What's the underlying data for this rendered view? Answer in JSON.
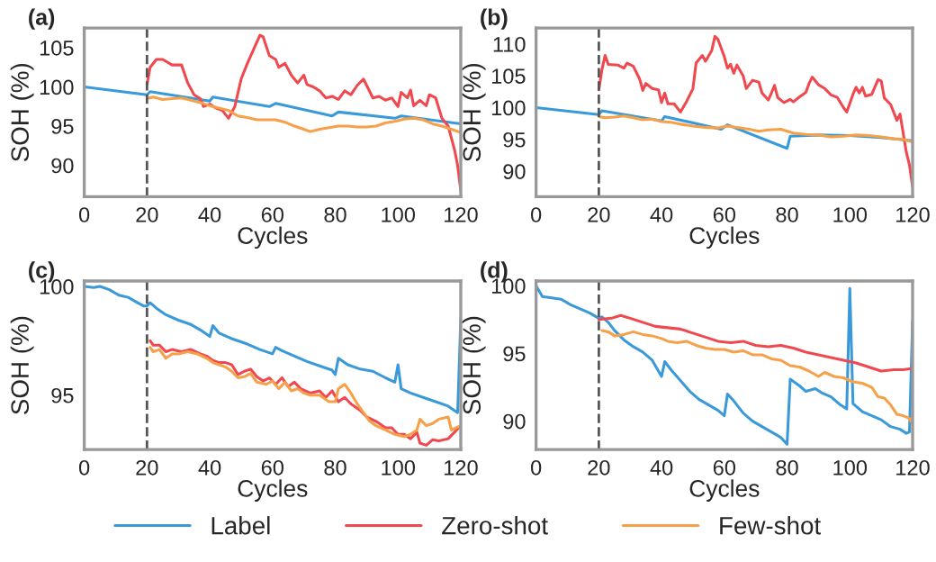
{
  "chart_data": [
    {
      "type": "line",
      "title": "(a)",
      "xlabel": "Cycles",
      "ylabel": "SOH (%)",
      "xlim": [
        0,
        120
      ],
      "xticks": [
        0,
        20,
        40,
        60,
        80,
        100,
        120
      ],
      "ylim": [
        86,
        107.5
      ],
      "yticks": [
        90,
        95,
        100,
        105
      ],
      "grid": false,
      "legend": "bottom",
      "ref_lines": [
        {
          "axis": "x",
          "value": 20,
          "color": "#555555",
          "line_style": "dashed"
        }
      ],
      "series": [
        {
          "name": "Label",
          "color": "#3a9ad9",
          "x": [
            0,
            20,
            21,
            40,
            41,
            59,
            61,
            79,
            81,
            99,
            101,
            120
          ],
          "values": [
            100,
            99,
            99.4,
            98.2,
            98.7,
            97.5,
            97.9,
            96.3,
            96.8,
            96,
            96.3,
            95.3
          ]
        },
        {
          "name": "Zero-shot",
          "color": "#f0484f",
          "x": [
            20,
            21,
            23,
            25,
            28,
            31,
            33,
            35,
            37,
            38,
            40,
            42,
            44,
            46,
            48,
            50,
            52,
            54,
            56,
            57,
            59,
            61,
            62,
            64,
            66,
            68,
            70,
            71,
            73,
            75,
            77,
            79,
            81,
            83,
            85,
            87,
            89,
            90,
            92,
            94,
            96,
            98,
            100,
            101,
            103,
            104,
            105,
            107,
            109,
            110,
            112,
            114,
            116,
            118,
            119,
            120
          ],
          "values": [
            100.3,
            102.5,
            103.5,
            103.5,
            102.8,
            102.8,
            100.5,
            99,
            98.5,
            97.5,
            97.8,
            97.3,
            97,
            96,
            97.5,
            101,
            103,
            104.8,
            106.6,
            106.4,
            104,
            103.5,
            102.5,
            103,
            101.5,
            100.5,
            101.5,
            100.3,
            100,
            99.5,
            98.6,
            98.8,
            98.4,
            99.5,
            99,
            100.2,
            101,
            100.2,
            98.6,
            98.8,
            98.3,
            98.6,
            97.5,
            99.3,
            98.6,
            99.6,
            97.6,
            98.3,
            97.6,
            99,
            98.6,
            96,
            95,
            92,
            90,
            86.8
          ]
        },
        {
          "name": "Few-shot",
          "color": "#f6a04a",
          "x": [
            20,
            22,
            25,
            28,
            31,
            34,
            37,
            40,
            43,
            46,
            49,
            52,
            55,
            58,
            61,
            64,
            67,
            70,
            72,
            75,
            78,
            81,
            84,
            87,
            90,
            93,
            96,
            99,
            102,
            105,
            108,
            111,
            114,
            117,
            120
          ],
          "values": [
            98.5,
            98.7,
            98.4,
            98.5,
            98.6,
            98.3,
            98,
            97.6,
            97.3,
            97,
            96.3,
            96.1,
            95.8,
            95.8,
            95.8,
            95.5,
            95,
            94.6,
            94.3,
            94.6,
            94.8,
            95,
            95,
            94.9,
            94.9,
            95,
            95.4,
            95.6,
            95.9,
            96,
            95.8,
            95.3,
            95,
            94.6,
            94.2
          ]
        }
      ]
    },
    {
      "type": "line",
      "title": "(b)",
      "xlabel": "Cycles",
      "ylabel": "SOH (%)",
      "xlim": [
        0,
        120
      ],
      "xticks": [
        0,
        20,
        40,
        60,
        80,
        100,
        120
      ],
      "ylim": [
        86,
        112.5
      ],
      "yticks": [
        90,
        95,
        100,
        105,
        110
      ],
      "grid": false,
      "ref_lines": [
        {
          "axis": "x",
          "value": 20,
          "color": "#555555",
          "line_style": "dashed"
        }
      ],
      "series": [
        {
          "name": "Label",
          "color": "#3a9ad9",
          "x": [
            0,
            20,
            21,
            40,
            41,
            59,
            61,
            80,
            81,
            90,
            100,
            110,
            120
          ],
          "values": [
            100,
            98.9,
            99.5,
            97.9,
            98.6,
            96.6,
            97.3,
            93.6,
            95.5,
            95.7,
            95.6,
            95.3,
            94.8
          ]
        },
        {
          "name": "Zero-shot",
          "color": "#f0484f",
          "x": [
            20,
            21,
            22,
            23,
            26,
            28,
            29,
            31,
            33,
            34,
            35,
            37,
            39,
            40,
            41,
            42,
            44,
            46,
            48,
            50,
            51,
            53,
            54,
            56,
            57,
            58,
            60,
            61,
            62,
            63,
            64,
            66,
            67,
            69,
            71,
            72,
            74,
            75,
            76,
            77,
            79,
            81,
            82,
            84,
            86,
            87,
            88,
            90,
            92,
            94,
            96,
            98,
            99,
            101,
            102,
            103,
            104,
            105,
            107,
            109,
            110,
            111,
            113,
            115,
            116,
            117,
            118,
            119,
            120
          ],
          "values": [
            102.8,
            106,
            108.2,
            106.8,
            106.7,
            106.2,
            107,
            106.5,
            104.5,
            102.7,
            103.8,
            103,
            102.8,
            100.8,
            102.3,
            100.6,
            100.6,
            99.3,
            101,
            103,
            107,
            108.2,
            107.3,
            109,
            111.2,
            110.7,
            108,
            106.2,
            106.8,
            105.4,
            106.7,
            105,
            103,
            104.3,
            104,
            102.3,
            101.2,
            102.3,
            103.5,
            101.6,
            100.8,
            101.3,
            100.9,
            101.7,
            102.4,
            103.8,
            104.8,
            103.6,
            103,
            102,
            101.6,
            100,
            99.3,
            102.1,
            103.2,
            102.3,
            103.2,
            101.8,
            102.1,
            104.4,
            104.2,
            101.5,
            100.5,
            98,
            99,
            96,
            93,
            91,
            87.5
          ]
        },
        {
          "name": "Few-shot",
          "color": "#f6a04a",
          "x": [
            20,
            22,
            25,
            28,
            31,
            34,
            37,
            40,
            43,
            46,
            50,
            54,
            58,
            61,
            64,
            68,
            71,
            74,
            78,
            82,
            86,
            90,
            94,
            98,
            102,
            106,
            110,
            114,
            117,
            120
          ],
          "values": [
            98.6,
            98.4,
            98.5,
            98.7,
            98.4,
            98.1,
            98.2,
            97.8,
            97.7,
            97.4,
            97.1,
            96.9,
            96.8,
            97.1,
            96.9,
            96.6,
            96.3,
            96.5,
            96.6,
            96,
            95.8,
            95.7,
            95.4,
            95.5,
            95.7,
            95.6,
            95.4,
            95.1,
            95,
            94.6
          ]
        }
      ]
    },
    {
      "type": "line",
      "title": "(c)",
      "xlabel": "Cycles",
      "ylabel": "SOH (%)",
      "xlim": [
        0,
        120
      ],
      "xticks": [
        0,
        20,
        40,
        60,
        80,
        100,
        120
      ],
      "ylim": [
        92.5,
        100.25
      ],
      "yticks": [
        95,
        100
      ],
      "grid": false,
      "ref_lines": [
        {
          "axis": "x",
          "value": 20,
          "color": "#555555",
          "line_style": "dashed"
        }
      ],
      "series": [
        {
          "name": "Label",
          "color": "#3a9ad9",
          "x": [
            0,
            3,
            5,
            8,
            11,
            14,
            17,
            19,
            20,
            21,
            23,
            26,
            30,
            34,
            37,
            40,
            41,
            43,
            47,
            52,
            56,
            60,
            61,
            63,
            67,
            71,
            75,
            79,
            80,
            81,
            84,
            88,
            92,
            96,
            99,
            100,
            101,
            104,
            108,
            112,
            116,
            119,
            120
          ],
          "values": [
            100,
            99.95,
            100,
            99.85,
            99.6,
            99.5,
            99.25,
            99.1,
            99.1,
            99.25,
            99,
            98.7,
            98.45,
            98.25,
            98,
            97.7,
            98.2,
            97.85,
            97.6,
            97.35,
            97.1,
            96.9,
            97.2,
            97.05,
            96.8,
            96.55,
            96.35,
            96.15,
            95.95,
            96.7,
            96.4,
            96.2,
            96.1,
            95.8,
            95.6,
            96.4,
            95.3,
            95.1,
            94.9,
            94.7,
            94.5,
            94.2,
            98.5
          ]
        },
        {
          "name": "Zero-shot",
          "color": "#f0484f",
          "x": [
            21,
            22,
            24,
            26,
            28,
            31,
            34,
            37,
            39,
            41,
            43,
            45,
            47,
            49,
            51,
            53,
            55,
            57,
            59,
            61,
            63,
            65,
            67,
            69,
            72,
            75,
            77,
            79,
            81,
            83,
            85,
            88,
            90,
            93,
            96,
            98,
            100,
            102,
            104,
            106,
            107,
            109,
            111,
            113,
            116,
            118,
            120
          ],
          "values": [
            97.5,
            97.3,
            97.3,
            97,
            97.1,
            97,
            97.1,
            96.9,
            96.8,
            96.6,
            96.5,
            96.5,
            96.4,
            95.95,
            96.1,
            96.2,
            95.85,
            95.65,
            95.8,
            95.5,
            95.8,
            95.4,
            95.6,
            95.3,
            95.1,
            95.2,
            94.9,
            95.2,
            94.7,
            94.9,
            94.6,
            94.3,
            94,
            93.8,
            93.5,
            93.5,
            93.2,
            93.2,
            93,
            93.3,
            92.8,
            92.7,
            92.95,
            92.9,
            93,
            93.3,
            93.6
          ]
        },
        {
          "name": "Few-shot",
          "color": "#f6a04a",
          "x": [
            21,
            22,
            24,
            26,
            28,
            30,
            33,
            36,
            39,
            41,
            43,
            45,
            47,
            49,
            51,
            53,
            55,
            58,
            60,
            62,
            64,
            66,
            68,
            70,
            72,
            75,
            78,
            80,
            81,
            83,
            85,
            87,
            89,
            91,
            93,
            96,
            99,
            102,
            104,
            106,
            107,
            109,
            111,
            113,
            116,
            117,
            120
          ],
          "values": [
            97.2,
            97,
            97.1,
            96.7,
            96.9,
            96.9,
            97,
            96.9,
            96.7,
            96.5,
            96.4,
            96.3,
            96.1,
            95.8,
            95.85,
            96,
            95.6,
            95.5,
            95.65,
            95.3,
            95.6,
            95.2,
            95.3,
            95.1,
            95,
            95,
            94.7,
            94.7,
            95.3,
            95.5,
            95.1,
            94.6,
            94.2,
            93.8,
            93.6,
            93.4,
            93.2,
            93.1,
            93.2,
            93.4,
            93.9,
            93.6,
            93.7,
            93.9,
            94,
            93.4,
            93.6
          ]
        }
      ]
    },
    {
      "type": "line",
      "title": "(d)",
      "xlabel": "Cycles",
      "ylabel": "SOH (%)",
      "xlim": [
        0,
        120
      ],
      "xticks": [
        0,
        20,
        40,
        60,
        80,
        100,
        120
      ],
      "ylim": [
        87.9,
        100.35
      ],
      "yticks": [
        90,
        95,
        100
      ],
      "grid": false,
      "ref_lines": [
        {
          "axis": "x",
          "value": 20,
          "color": "#555555",
          "line_style": "dashed"
        }
      ],
      "series": [
        {
          "name": "Label",
          "color": "#3a9ad9",
          "x": [
            0,
            1,
            2,
            5,
            8,
            11,
            14,
            17,
            20,
            21,
            23,
            25,
            28,
            31,
            34,
            37,
            40,
            41,
            43,
            46,
            49,
            52,
            55,
            58,
            60,
            61,
            63,
            66,
            69,
            72,
            75,
            78,
            80,
            81,
            84,
            86,
            89,
            91,
            94,
            97,
            99,
            100,
            101,
            104,
            107,
            110,
            113,
            116,
            118,
            119,
            120
          ],
          "values": [
            100,
            99.6,
            99.2,
            99.1,
            99,
            98.6,
            98.3,
            98,
            97.6,
            97.7,
            97.3,
            96.7,
            96,
            95.5,
            95.1,
            94.5,
            93.3,
            94.4,
            93.8,
            93,
            92.2,
            91.6,
            91.2,
            90.8,
            90.4,
            92,
            91.5,
            90.6,
            90,
            89.6,
            89.2,
            88.8,
            88.3,
            93.1,
            92.6,
            92.2,
            92.4,
            92.1,
            91.8,
            91.2,
            90.9,
            99.8,
            91.3,
            90.7,
            90.4,
            90.1,
            89.6,
            89.4,
            89.1,
            89.2,
            97.4
          ]
        },
        {
          "name": "Zero-shot",
          "color": "#f0484f",
          "x": [
            20,
            24,
            27,
            30,
            34,
            38,
            42,
            46,
            50,
            54,
            58,
            62,
            66,
            70,
            74,
            78,
            82,
            86,
            90,
            94,
            98,
            102,
            106,
            110,
            114,
            117,
            120
          ],
          "values": [
            97.5,
            97.6,
            97.8,
            97.6,
            97.3,
            97,
            96.9,
            96.8,
            96.5,
            96.2,
            95.9,
            95.8,
            95.9,
            95.6,
            95.5,
            95.6,
            95.4,
            95.1,
            94.9,
            94.7,
            94.5,
            94.3,
            94,
            93.7,
            93.8,
            93.8,
            93.9
          ]
        },
        {
          "name": "Few-shot",
          "color": "#f6a04a",
          "x": [
            21,
            23,
            25,
            28,
            31,
            34,
            37,
            40,
            42,
            45,
            48,
            51,
            54,
            57,
            60,
            63,
            66,
            69,
            72,
            75,
            78,
            81,
            84,
            87,
            90,
            92,
            95,
            98,
            101,
            104,
            107,
            109,
            111,
            113,
            115,
            117,
            119,
            120
          ],
          "values": [
            96.7,
            96.6,
            96.3,
            96.4,
            96.6,
            96.4,
            96.3,
            96.1,
            95.9,
            95.8,
            95.9,
            95.6,
            95.4,
            95.3,
            95.3,
            95.1,
            95.2,
            94.9,
            94.9,
            94.6,
            94.5,
            94.1,
            94,
            93.7,
            93.3,
            93.6,
            93.3,
            93.2,
            92.9,
            92.8,
            92.5,
            91.8,
            91.7,
            91.2,
            90.5,
            90.4,
            90.2,
            89.8
          ]
        }
      ]
    }
  ]
}
